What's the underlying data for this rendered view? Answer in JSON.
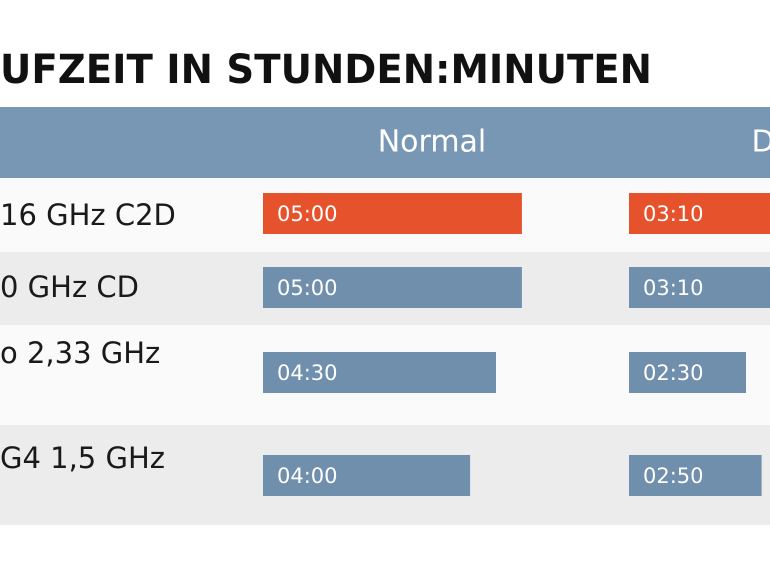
{
  "chart_data": {
    "type": "bar",
    "title": "UFZEIT IN STUNDEN:MINUTEN",
    "categories": [
      "16 GHz C2D",
      "0 GHz CD",
      "o 2,33 GHz",
      "G4 1,5 GHz"
    ],
    "series": [
      {
        "name": "Normal",
        "color": "#6f8fac",
        "values": [
          300,
          300,
          270,
          240
        ],
        "value_labels": [
          "05:00",
          "05:00",
          "04:30",
          "04:00"
        ]
      },
      {
        "name": "D",
        "color": "#6f8fac",
        "values": [
          190,
          190,
          150,
          170
        ],
        "value_labels": [
          "03:10",
          "03:10",
          "02:30",
          "02:50"
        ]
      }
    ],
    "highlight": {
      "index": 0,
      "color": "#e6522b"
    }
  }
}
